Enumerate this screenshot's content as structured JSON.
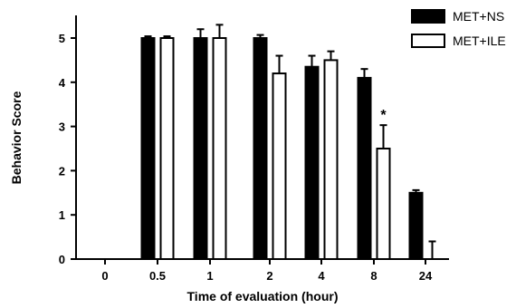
{
  "chart_data": {
    "type": "bar",
    "xlabel": "Time of evaluation (hour)",
    "ylabel": "Behavior Score",
    "ylim": [
      0,
      5.5
    ],
    "yticks": [
      "0",
      "1",
      "2",
      "3",
      "4",
      "5"
    ],
    "categories": [
      "0",
      "0.5",
      "1",
      "2",
      "4",
      "8",
      "24"
    ],
    "series": [
      {
        "name": "MET+NS",
        "fill": "#000000",
        "values": [
          0,
          5.0,
          5.0,
          5.0,
          4.35,
          4.1,
          1.5
        ],
        "errors": [
          0,
          0.04,
          0.2,
          0.07,
          0.25,
          0.2,
          0.06
        ]
      },
      {
        "name": "MET+ILE",
        "fill": "#ffffff",
        "values": [
          0,
          5.0,
          5.0,
          4.2,
          4.5,
          2.5,
          0
        ],
        "errors": [
          0,
          0.04,
          0.3,
          0.4,
          0.2,
          0.53,
          0.4
        ]
      }
    ],
    "annotations": [
      {
        "category": "8",
        "series": "MET+ILE",
        "text": "*"
      }
    ],
    "legend": "top-right",
    "grid": false
  },
  "colors": {
    "axis": "#000000",
    "ns_fill": "#000000",
    "ile_fill": "#ffffff"
  }
}
